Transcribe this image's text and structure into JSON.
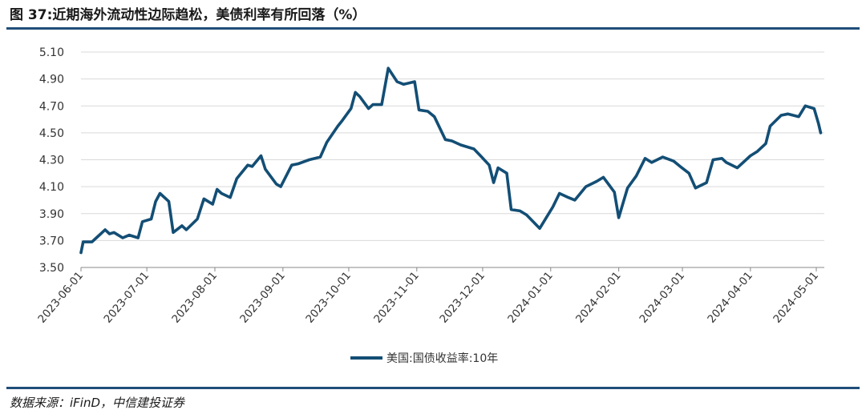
{
  "title": "图 37:近期海外流动性边际趋松，美债利率有所回落（%）",
  "source": "数据来源：iFinD，中信建投证券",
  "colors": {
    "series": "#134e75",
    "grid": "#d9d9d9",
    "axis": "#888888",
    "rule": "#1f4e79"
  },
  "chart_data": {
    "type": "line",
    "ylim": [
      3.5,
      5.1
    ],
    "yticks": [
      "3.50",
      "3.70",
      "3.90",
      "4.10",
      "4.30",
      "4.50",
      "4.70",
      "4.90",
      "5.10"
    ],
    "xticks": [
      "2023-06-01",
      "2023-07-01",
      "2023-08-01",
      "2023-09-01",
      "2023-10-01",
      "2023-11-01",
      "2023-12-01",
      "2024-01-01",
      "2024-02-01",
      "2024-03-01",
      "2024-04-01",
      "2024-05-01"
    ],
    "grid": "horizontal",
    "legend": "bottom-center",
    "series": [
      {
        "name": "美国:国债收益率:10年",
        "x": [
          "2023-06-01",
          "2023-06-02",
          "2023-06-06",
          "2023-06-08",
          "2023-06-12",
          "2023-06-14",
          "2023-06-16",
          "2023-06-20",
          "2023-06-23",
          "2023-06-27",
          "2023-06-29",
          "2023-07-03",
          "2023-07-05",
          "2023-07-07",
          "2023-07-11",
          "2023-07-13",
          "2023-07-17",
          "2023-07-19",
          "2023-07-24",
          "2023-07-27",
          "2023-07-31",
          "2023-08-02",
          "2023-08-04",
          "2023-08-08",
          "2023-08-11",
          "2023-08-16",
          "2023-08-18",
          "2023-08-22",
          "2023-08-24",
          "2023-08-29",
          "2023-08-31",
          "2023-09-05",
          "2023-09-08",
          "2023-09-13",
          "2023-09-18",
          "2023-09-21",
          "2023-09-26",
          "2023-09-28",
          "2023-10-02",
          "2023-10-04",
          "2023-10-06",
          "2023-10-10",
          "2023-10-12",
          "2023-10-16",
          "2023-10-19",
          "2023-10-23",
          "2023-10-26",
          "2023-10-31",
          "2023-11-02",
          "2023-11-06",
          "2023-11-09",
          "2023-11-14",
          "2023-11-17",
          "2023-11-21",
          "2023-11-27",
          "2023-11-30",
          "2023-12-04",
          "2023-12-06",
          "2023-12-08",
          "2023-12-12",
          "2023-12-14",
          "2023-12-18",
          "2023-12-21",
          "2023-12-27",
          "2024-01-02",
          "2024-01-05",
          "2024-01-09",
          "2024-01-12",
          "2024-01-17",
          "2024-01-22",
          "2024-01-25",
          "2024-01-30",
          "2024-02-01",
          "2024-02-05",
          "2024-02-09",
          "2024-02-13",
          "2024-02-16",
          "2024-02-21",
          "2024-02-26",
          "2024-02-29",
          "2024-03-04",
          "2024-03-07",
          "2024-03-12",
          "2024-03-15",
          "2024-03-19",
          "2024-03-21",
          "2024-03-26",
          "2024-04-01",
          "2024-04-04",
          "2024-04-08",
          "2024-04-10",
          "2024-04-15",
          "2024-04-18",
          "2024-04-23",
          "2024-04-26",
          "2024-04-30",
          "2024-05-02",
          "2024-05-03"
        ],
        "values": [
          3.61,
          3.69,
          3.69,
          3.72,
          3.78,
          3.75,
          3.76,
          3.72,
          3.74,
          3.72,
          3.84,
          3.86,
          3.99,
          4.05,
          3.99,
          3.76,
          3.81,
          3.78,
          3.86,
          4.01,
          3.97,
          4.08,
          4.05,
          4.02,
          4.16,
          4.26,
          4.25,
          4.33,
          4.23,
          4.12,
          4.1,
          4.26,
          4.27,
          4.3,
          4.32,
          4.43,
          4.55,
          4.59,
          4.68,
          4.8,
          4.77,
          4.68,
          4.71,
          4.71,
          4.98,
          4.88,
          4.86,
          4.88,
          4.67,
          4.66,
          4.62,
          4.45,
          4.44,
          4.41,
          4.38,
          4.33,
          4.26,
          4.13,
          4.24,
          4.2,
          3.93,
          3.92,
          3.89,
          3.79,
          3.95,
          4.05,
          4.02,
          4.0,
          4.1,
          4.14,
          4.17,
          4.06,
          3.87,
          4.09,
          4.18,
          4.31,
          4.28,
          4.32,
          4.29,
          4.25,
          4.2,
          4.09,
          4.13,
          4.3,
          4.31,
          4.28,
          4.24,
          4.33,
          4.36,
          4.42,
          4.55,
          4.63,
          4.64,
          4.62,
          4.7,
          4.68,
          4.57,
          4.5
        ]
      }
    ]
  }
}
